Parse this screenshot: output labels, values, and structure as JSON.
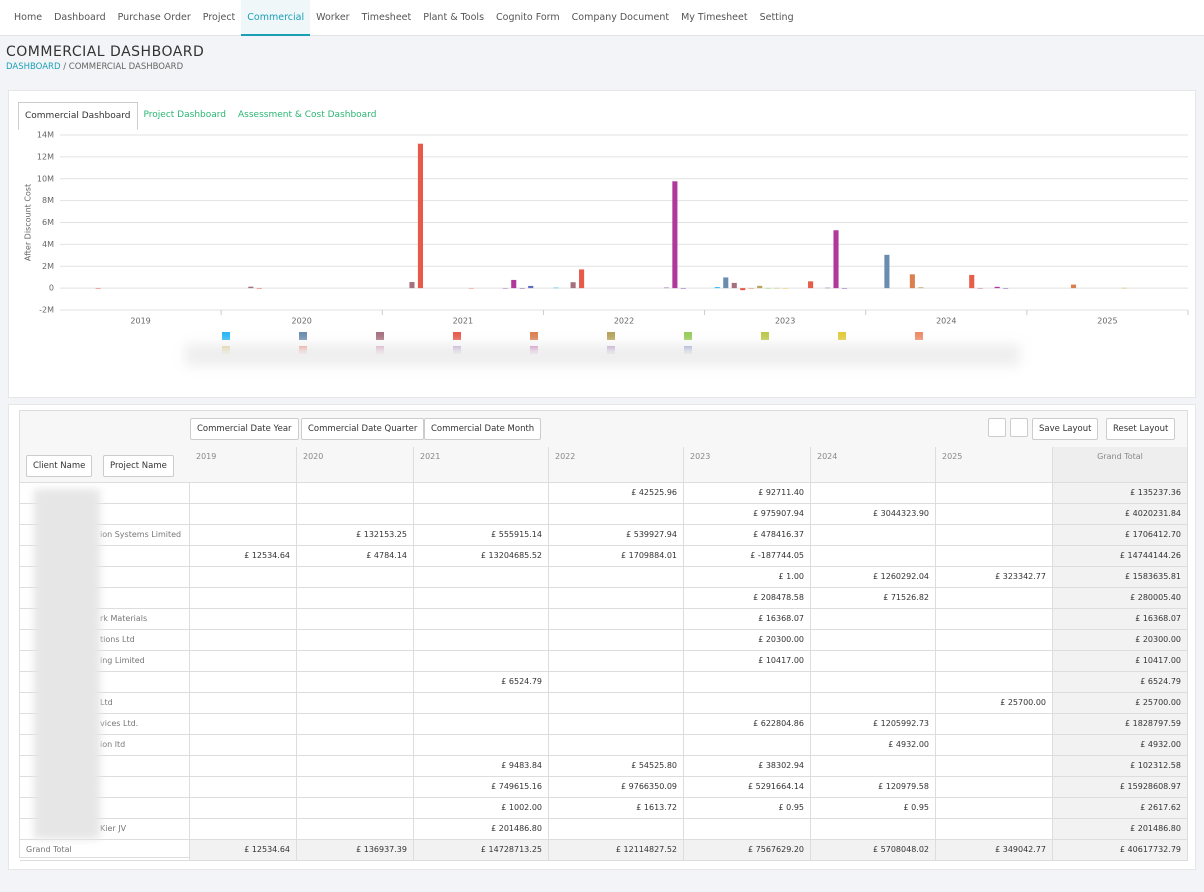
{
  "nav": [
    "Home",
    "Dashboard",
    "Purchase Order",
    "Project",
    "Commercial",
    "Worker",
    "Timesheet",
    "Plant & Tools",
    "Cognito Form",
    "Company Document",
    "My Timesheet",
    "Setting"
  ],
  "nav_active": 4,
  "page_title": "COMMERCIAL DASHBOARD",
  "breadcrumb": [
    "DASHBOARD",
    "COMMERCIAL DASHBOARD"
  ],
  "tabs": [
    "Commercial Dashboard",
    "Project Dashboard",
    "Assessment & Cost Dashboard"
  ],
  "chart_data": {
    "type": "bar",
    "y_label": "After Discount Cost",
    "categories": [
      "2019",
      "2020",
      "2021",
      "2022",
      "2023",
      "2024",
      "2025"
    ],
    "ylim": [
      -2000000,
      14000000
    ],
    "yticks": [
      {
        "value": -2000000,
        "label": "-2M"
      },
      0,
      {
        "value": 2000000,
        "label": "2M"
      },
      {
        "value": 4000000,
        "label": "4M"
      },
      {
        "value": 6000000,
        "label": "6M"
      },
      {
        "value": 8000000,
        "label": "8M"
      },
      {
        "value": 10000000,
        "label": "10M"
      },
      {
        "value": 12000000,
        "label": "12M"
      },
      {
        "value": 14000000,
        "label": "14M"
      }
    ],
    "grid": true,
    "series": [
      {
        "color": "#29b6f6",
        "values": [
          null,
          null,
          null,
          42525.96,
          92711.4,
          null,
          null
        ]
      },
      {
        "color": "#6a8caf",
        "values": [
          null,
          null,
          null,
          null,
          975907.94,
          3044323.9,
          null
        ]
      },
      {
        "color": "#a5707e",
        "values": [
          null,
          132153.25,
          555915.14,
          539927.94,
          478416.37,
          null,
          null
        ]
      },
      {
        "color": "#e8594a",
        "values": [
          12534.64,
          4784.14,
          13204685.52,
          1709884.01,
          -187744.05,
          null,
          null
        ]
      },
      {
        "color": "#d9804e",
        "values": [
          null,
          null,
          null,
          null,
          1.0,
          1260292.04,
          323342.77
        ]
      },
      {
        "color": "#b5a35a",
        "values": [
          null,
          null,
          null,
          null,
          208478.58,
          71526.82,
          null
        ]
      },
      {
        "color": "#97cc5a",
        "values": [
          null,
          null,
          null,
          null,
          16368.07,
          null,
          null
        ]
      },
      {
        "color": "#bcc84a",
        "values": [
          null,
          null,
          null,
          null,
          20300.0,
          null,
          null
        ]
      },
      {
        "color": "#e3c93a",
        "values": [
          null,
          null,
          null,
          null,
          10417.0,
          null,
          null
        ]
      },
      {
        "color": "#ef8a65",
        "values": [
          null,
          null,
          6524.79,
          null,
          null,
          null,
          null
        ]
      },
      {
        "color": "#d6b84a",
        "values": [
          null,
          null,
          null,
          null,
          null,
          null,
          25700.0
        ]
      },
      {
        "color": "#e85c4a",
        "values": [
          null,
          null,
          null,
          null,
          622804.86,
          1205992.73,
          null
        ]
      },
      {
        "color": "#c46a9a",
        "values": [
          null,
          null,
          null,
          null,
          null,
          4932.0,
          null
        ]
      },
      {
        "color": "#9c6fb5",
        "values": [
          null,
          null,
          9483.84,
          54525.8,
          38302.94,
          null,
          null
        ]
      },
      {
        "color": "#b0389b",
        "values": [
          null,
          null,
          749615.16,
          9766350.09,
          5291664.14,
          120979.58,
          null
        ]
      },
      {
        "color": "#8e5bb5",
        "values": [
          null,
          null,
          1002.0,
          1613.72,
          0.95,
          0.95,
          null
        ]
      },
      {
        "color": "#5c6bc0",
        "values": [
          null,
          null,
          201486.8,
          null,
          null,
          null,
          null
        ]
      }
    ]
  },
  "table": {
    "buttons": [
      "Save Layout",
      "Reset Layout"
    ],
    "column_fields": [
      "Commercial Date Year",
      "Commercial Date Quarter",
      "Commercial Date Month"
    ],
    "row_fields": [
      "Client Name",
      "Project Name"
    ],
    "columns": [
      "2019",
      "2020",
      "2021",
      "2022",
      "2023",
      "2024",
      "2025",
      "Grand Total"
    ],
    "rows": [
      {
        "label": null,
        "cells": [
          null,
          null,
          null,
          "£ 42525.96",
          "£ 92711.40",
          null,
          null,
          "£ 135237.36"
        ]
      },
      {
        "label": null,
        "cells": [
          null,
          null,
          null,
          null,
          "£ 975907.94",
          "£ 3044323.90",
          null,
          "£ 4020231.84"
        ]
      },
      {
        "label": "ion Systems Limited",
        "cells": [
          null,
          "£ 132153.25",
          "£ 555915.14",
          "£ 539927.94",
          "£ 478416.37",
          null,
          null,
          "£ 1706412.70"
        ]
      },
      {
        "label": null,
        "cells": [
          "£ 12534.64",
          "£ 4784.14",
          "£ 13204685.52",
          "£ 1709884.01",
          "£ -187744.05",
          null,
          null,
          "£ 14744144.26"
        ]
      },
      {
        "label": null,
        "cells": [
          null,
          null,
          null,
          null,
          "£ 1.00",
          "£ 1260292.04",
          "£ 323342.77",
          "£ 1583635.81"
        ]
      },
      {
        "label": null,
        "cells": [
          null,
          null,
          null,
          null,
          "£ 208478.58",
          "£ 71526.82",
          null,
          "£ 280005.40"
        ]
      },
      {
        "label": "rk Materials",
        "cells": [
          null,
          null,
          null,
          null,
          "£ 16368.07",
          null,
          null,
          "£ 16368.07"
        ]
      },
      {
        "label": "tions Ltd",
        "cells": [
          null,
          null,
          null,
          null,
          "£ 20300.00",
          null,
          null,
          "£ 20300.00"
        ]
      },
      {
        "label": "ing Limited",
        "cells": [
          null,
          null,
          null,
          null,
          "£ 10417.00",
          null,
          null,
          "£ 10417.00"
        ]
      },
      {
        "label": null,
        "cells": [
          null,
          null,
          "£ 6524.79",
          null,
          null,
          null,
          null,
          "£ 6524.79"
        ]
      },
      {
        "label": "Ltd",
        "cells": [
          null,
          null,
          null,
          null,
          null,
          null,
          "£ 25700.00",
          "£ 25700.00"
        ]
      },
      {
        "label": "vices Ltd.",
        "cells": [
          null,
          null,
          null,
          null,
          "£ 622804.86",
          "£ 1205992.73",
          null,
          "£ 1828797.59"
        ]
      },
      {
        "label": "ion ltd",
        "cells": [
          null,
          null,
          null,
          null,
          null,
          "£ 4932.00",
          null,
          "£ 4932.00"
        ]
      },
      {
        "label": null,
        "cells": [
          null,
          null,
          "£ 9483.84",
          "£ 54525.80",
          "£ 38302.94",
          null,
          null,
          "£ 102312.58"
        ]
      },
      {
        "label": null,
        "cells": [
          null,
          null,
          "£ 749615.16",
          "£ 9766350.09",
          "£ 5291664.14",
          "£ 120979.58",
          null,
          "£ 15928608.97"
        ]
      },
      {
        "label": null,
        "cells": [
          null,
          null,
          "£ 1002.00",
          "£ 1613.72",
          "£ 0.95",
          "£ 0.95",
          null,
          "£ 2617.62"
        ]
      },
      {
        "label": "Kier JV",
        "cells": [
          null,
          null,
          "£ 201486.80",
          null,
          null,
          null,
          null,
          "£ 201486.80"
        ]
      }
    ],
    "total": {
      "label": "Grand Total",
      "cells": [
        "£ 12534.64",
        "£ 136937.39",
        "£ 14728713.25",
        "£ 12114827.52",
        "£ 7567629.20",
        "£ 5708048.02",
        "£ 349042.77",
        "£ 40617732.79"
      ]
    }
  }
}
